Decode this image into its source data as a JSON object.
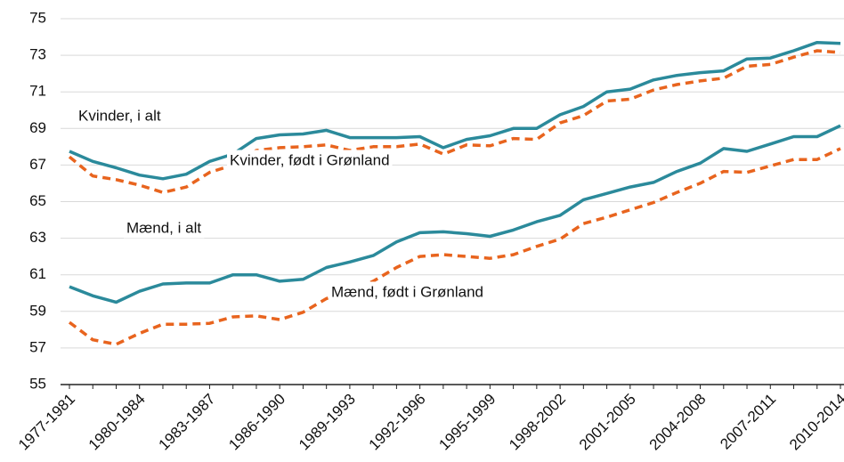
{
  "chart_data": {
    "type": "line",
    "categories": [
      "1977-1981",
      null,
      null,
      "1980-1984",
      null,
      null,
      "1983-1987",
      null,
      null,
      "1986-1990",
      null,
      null,
      "1989-1993",
      null,
      null,
      "1992-1996",
      null,
      null,
      "1995-1999",
      null,
      null,
      "1998-2002",
      null,
      null,
      "2001-2005",
      null,
      null,
      "2004-2008",
      null,
      null,
      "2007-2011",
      null,
      null,
      "2010-2014"
    ],
    "series": [
      {
        "name": "Kvinder, i alt",
        "color": "#2b8a9b",
        "dashed": false,
        "values": [
          67.75,
          67.2,
          66.85,
          66.45,
          66.25,
          66.5,
          67.2,
          67.6,
          68.45,
          68.65,
          68.7,
          68.9,
          68.5,
          68.5,
          68.5,
          68.55,
          67.95,
          68.4,
          68.6,
          69.0,
          69.0,
          69.75,
          70.2,
          71.0,
          71.15,
          71.65,
          71.9,
          72.05,
          72.15,
          72.8,
          72.85,
          73.25,
          73.7,
          73.65
        ]
      },
      {
        "name": "Kvinder, født i Grønland",
        "color": "#e8641e",
        "dashed": true,
        "values": [
          67.45,
          66.4,
          66.2,
          65.9,
          65.5,
          65.8,
          66.6,
          67.0,
          67.8,
          67.95,
          68.0,
          68.1,
          67.8,
          68.0,
          68.0,
          68.15,
          67.6,
          68.1,
          68.05,
          68.45,
          68.4,
          69.3,
          69.7,
          70.5,
          70.6,
          71.1,
          71.4,
          71.6,
          71.75,
          72.4,
          72.5,
          72.9,
          73.25,
          73.15
        ]
      },
      {
        "name": "Mænd, i alt",
        "color": "#2b8a9b",
        "dashed": false,
        "values": [
          60.35,
          59.85,
          59.5,
          60.1,
          60.5,
          60.55,
          60.55,
          61.0,
          61.0,
          60.65,
          60.75,
          61.4,
          61.7,
          62.05,
          62.8,
          63.3,
          63.35,
          63.25,
          63.1,
          63.45,
          63.9,
          64.25,
          65.1,
          65.45,
          65.8,
          66.05,
          66.65,
          67.1,
          67.9,
          67.75,
          68.15,
          68.55,
          68.55,
          69.15
        ]
      },
      {
        "name": "Mænd, født i Grønland",
        "color": "#e8641e",
        "dashed": true,
        "values": [
          58.4,
          57.45,
          57.2,
          57.8,
          58.3,
          58.3,
          58.35,
          58.7,
          58.75,
          58.55,
          58.95,
          59.7,
          60.1,
          60.65,
          61.4,
          62.0,
          62.1,
          62.0,
          61.9,
          62.1,
          62.55,
          62.95,
          63.8,
          64.15,
          64.55,
          64.95,
          65.5,
          66.0,
          66.65,
          66.6,
          66.95,
          67.3,
          67.3,
          67.9
        ]
      }
    ],
    "ylim": [
      55,
      75
    ],
    "yticks": [
      55,
      57,
      59,
      61,
      63,
      65,
      67,
      69,
      71,
      73,
      75
    ],
    "grid": true
  }
}
